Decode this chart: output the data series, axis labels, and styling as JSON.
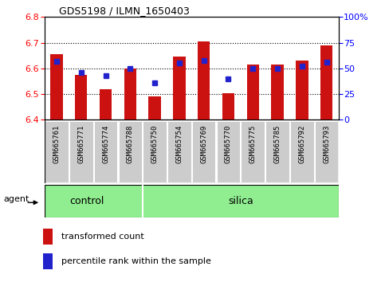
{
  "title": "GDS5198 / ILMN_1650403",
  "samples": [
    "GSM665761",
    "GSM665771",
    "GSM665774",
    "GSM665788",
    "GSM665750",
    "GSM665754",
    "GSM665769",
    "GSM665770",
    "GSM665775",
    "GSM665785",
    "GSM665792",
    "GSM665793"
  ],
  "transformed_counts": [
    6.655,
    6.575,
    6.52,
    6.6,
    6.49,
    6.645,
    6.705,
    6.505,
    6.615,
    6.615,
    6.63,
    6.69
  ],
  "percentile_ranks": [
    57,
    46,
    43,
    50,
    36,
    55,
    58,
    40,
    50,
    50,
    52,
    56
  ],
  "groups": [
    "control",
    "control",
    "control",
    "control",
    "silica",
    "silica",
    "silica",
    "silica",
    "silica",
    "silica",
    "silica",
    "silica"
  ],
  "ylim_left": [
    6.4,
    6.8
  ],
  "ylim_right": [
    0,
    100
  ],
  "yticks_left": [
    6.4,
    6.5,
    6.6,
    6.7,
    6.8
  ],
  "yticks_right": [
    0,
    25,
    50,
    75,
    100
  ],
  "bar_color": "#cc1111",
  "dot_color": "#2222cc",
  "bar_bottom": 6.4,
  "group_band_color": "#90EE90",
  "label_bg_color": "#cccccc",
  "legend_items": [
    "transformed count",
    "percentile rank within the sample"
  ],
  "agent_label": "agent",
  "group_labels": [
    "control",
    "silica"
  ],
  "n_control": 4,
  "n_silica": 8
}
